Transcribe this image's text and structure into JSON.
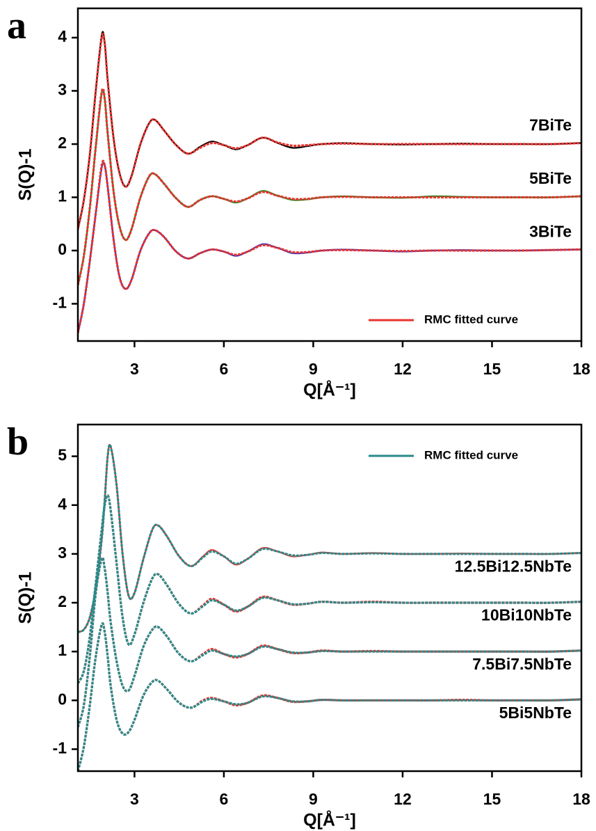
{
  "chart_data": [
    {
      "type": "line",
      "panel_label": "a",
      "x_label": "Q[Å⁻¹]",
      "y_label": "S(Q)-1",
      "xlim": [
        1.1,
        18
      ],
      "xticks": [
        3,
        6,
        9,
        12,
        15,
        18
      ],
      "ylim": [
        -1.7,
        4.55
      ],
      "yticks": [
        -1,
        0,
        1,
        2,
        3,
        4
      ],
      "legend": "lower right",
      "x": [
        1.1,
        1.3,
        1.5,
        1.7,
        1.9,
        2.0,
        2.1,
        2.3,
        2.5,
        2.7,
        2.9,
        3.2,
        3.5,
        3.7,
        4.0,
        4.4,
        4.8,
        5.2,
        5.6,
        6.0,
        6.4,
        6.8,
        7.3,
        7.8,
        8.3,
        8.8,
        9.3,
        10,
        11,
        12,
        13,
        14,
        15,
        16,
        17,
        18
      ],
      "series": [
        {
          "name": "7BiTe",
          "label": "inline",
          "color": "#000000",
          "values": [
            0.4,
            0.95,
            1.8,
            3.0,
            4.05,
            3.9,
            3.2,
            2.1,
            1.45,
            1.2,
            1.4,
            2.0,
            2.4,
            2.45,
            2.25,
            1.98,
            1.82,
            1.95,
            2.05,
            1.98,
            1.9,
            1.98,
            2.12,
            2.02,
            1.93,
            1.96,
            2.0,
            2.02,
            2.0,
            1.99,
            2.0,
            2.01,
            2.0,
            2.0,
            2.0,
            2.02
          ]
        },
        {
          "name": "5BiTe",
          "label": "inline",
          "color": "#1a8a1a",
          "values": [
            -0.65,
            -0.1,
            0.8,
            1.95,
            2.95,
            2.85,
            2.2,
            1.1,
            0.45,
            0.2,
            0.4,
            1.0,
            1.4,
            1.43,
            1.25,
            0.98,
            0.82,
            0.95,
            1.02,
            0.97,
            0.9,
            0.98,
            1.12,
            1.03,
            0.95,
            0.96,
            1.0,
            1.02,
            1.0,
            0.99,
            1.02,
            1.01,
            1.0,
            1.0,
            1.0,
            1.02
          ]
        },
        {
          "name": "3BiTe",
          "label": "inline",
          "color": "#3030c0",
          "values": [
            -1.55,
            -1.0,
            -0.2,
            0.7,
            1.55,
            1.6,
            1.2,
            0.2,
            -0.5,
            -0.72,
            -0.55,
            0.0,
            0.33,
            0.38,
            0.25,
            -0.02,
            -0.15,
            -0.05,
            0.02,
            -0.02,
            -0.1,
            -0.02,
            0.12,
            0.05,
            -0.05,
            -0.04,
            0.0,
            0.02,
            0.0,
            -0.02,
            0.0,
            0.01,
            0.0,
            0.0,
            0.01,
            0.02
          ]
        },
        {
          "name": "RMC fitted curve",
          "label": "legend",
          "color": "#e8332f",
          "values": [
            0.4,
            0.95,
            1.8,
            3.0,
            4.0,
            3.9,
            3.2,
            2.1,
            1.45,
            1.2,
            1.4,
            2.0,
            2.4,
            2.45,
            2.25,
            1.98,
            1.82,
            1.93,
            2.02,
            1.98,
            1.92,
            1.98,
            2.12,
            2.03,
            1.97,
            1.98,
            2.0,
            2.01,
            2.0,
            2.0,
            2.0,
            2.0,
            2.0,
            2.0,
            2.0,
            2.02
          ]
        },
        {
          "color": "#e8332f",
          "values": [
            -0.65,
            -0.1,
            0.8,
            1.95,
            2.98,
            2.85,
            2.2,
            1.1,
            0.45,
            0.2,
            0.4,
            1.0,
            1.4,
            1.43,
            1.25,
            0.98,
            0.82,
            0.95,
            1.02,
            0.97,
            0.92,
            0.98,
            1.1,
            1.03,
            0.97,
            0.97,
            1.0,
            1.01,
            1.0,
            1.0,
            1.0,
            1.0,
            1.0,
            1.0,
            1.0,
            1.02
          ]
        },
        {
          "color": "#e8332f",
          "values": [
            -1.55,
            -1.0,
            -0.2,
            0.7,
            1.6,
            1.6,
            1.2,
            0.2,
            -0.5,
            -0.72,
            -0.55,
            0.0,
            0.33,
            0.38,
            0.25,
            -0.02,
            -0.15,
            -0.05,
            0.02,
            -0.02,
            -0.08,
            -0.02,
            0.1,
            0.05,
            -0.03,
            -0.03,
            0.0,
            0.01,
            0.0,
            -0.01,
            0.0,
            0.0,
            0.0,
            0.0,
            0.01,
            0.02
          ]
        }
      ]
    },
    {
      "type": "line",
      "panel_label": "b",
      "x_label": "Q[Å⁻¹]",
      "y_label": "S(Q)-1",
      "xlim": [
        1.1,
        18
      ],
      "xticks": [
        3,
        6,
        9,
        12,
        15,
        18
      ],
      "ylim": [
        -1.45,
        5.65
      ],
      "yticks": [
        -1,
        0,
        1,
        2,
        3,
        4,
        5
      ],
      "legend": "upper right",
      "x": [
        1.1,
        1.3,
        1.5,
        1.7,
        1.9,
        2.0,
        2.1,
        2.2,
        2.4,
        2.6,
        2.8,
        3.0,
        3.3,
        3.6,
        3.8,
        4.1,
        4.5,
        4.9,
        5.3,
        5.6,
        6.0,
        6.4,
        6.8,
        7.3,
        7.8,
        8.3,
        8.8,
        9.3,
        10,
        11,
        12,
        13,
        14,
        15,
        16,
        17,
        18
      ],
      "series": [
        {
          "name": "12.5Bi12.5NbTe",
          "label": "inline",
          "color": "#e8332f",
          "values": [
            1.4,
            1.45,
            1.7,
            2.3,
            3.3,
            4.1,
            5.0,
            5.2,
            4.4,
            3.0,
            2.15,
            2.2,
            2.9,
            3.5,
            3.58,
            3.35,
            2.95,
            2.75,
            2.95,
            3.08,
            2.95,
            2.78,
            2.9,
            3.12,
            3.05,
            2.95,
            2.98,
            3.03,
            3.0,
            3.02,
            3.0,
            3.0,
            3.01,
            3.0,
            3.0,
            3.0,
            3.02
          ]
        },
        {
          "name": "10Bi10NbTe",
          "label": "inline",
          "color": "#e8332f",
          "values": [
            0.35,
            0.6,
            1.3,
            2.4,
            3.5,
            4.0,
            4.2,
            3.9,
            2.8,
            1.7,
            1.15,
            1.35,
            2.0,
            2.5,
            2.58,
            2.35,
            1.97,
            1.78,
            1.95,
            2.08,
            1.96,
            1.82,
            1.92,
            2.12,
            2.05,
            1.96,
            1.98,
            2.02,
            2.0,
            2.02,
            2.0,
            2.0,
            2.0,
            2.0,
            2.0,
            2.0,
            2.02
          ]
        },
        {
          "name": "7.5Bi7.5NbTe",
          "label": "inline",
          "color": "#e8332f",
          "values": [
            -0.55,
            -0.1,
            0.9,
            2.2,
            2.9,
            2.7,
            2.2,
            1.6,
            0.8,
            0.3,
            0.2,
            0.5,
            1.1,
            1.45,
            1.5,
            1.3,
            0.95,
            0.8,
            0.95,
            1.05,
            0.95,
            0.88,
            0.95,
            1.12,
            1.05,
            0.97,
            0.98,
            1.02,
            1.0,
            1.01,
            1.0,
            1.0,
            1.0,
            1.0,
            1.0,
            1.0,
            1.02
          ]
        },
        {
          "name": "5Bi5NbTe",
          "label": "inline",
          "color": "#e8332f",
          "values": [
            -1.45,
            -0.95,
            -0.1,
            0.9,
            1.55,
            1.4,
            0.9,
            0.3,
            -0.4,
            -0.68,
            -0.65,
            -0.4,
            0.1,
            0.38,
            0.4,
            0.22,
            -0.05,
            -0.15,
            0.0,
            0.05,
            -0.02,
            -0.1,
            -0.05,
            0.1,
            0.05,
            -0.03,
            -0.02,
            0.01,
            0.0,
            0.0,
            0.0,
            0.0,
            0.01,
            0.0,
            0.0,
            0.0,
            0.02
          ]
        },
        {
          "name": "RMC fitted curve",
          "label": "legend",
          "color": "#2a8a8a",
          "values": [
            1.4,
            1.45,
            1.7,
            2.3,
            3.3,
            4.1,
            5.0,
            5.2,
            4.4,
            3.0,
            2.15,
            2.2,
            2.9,
            3.5,
            3.58,
            3.35,
            2.95,
            2.75,
            2.93,
            3.05,
            2.95,
            2.8,
            2.9,
            3.1,
            3.05,
            2.97,
            2.98,
            3.02,
            3.0,
            3.01,
            3.0,
            3.0,
            3.0,
            3.0,
            3.0,
            3.0,
            3.02
          ]
        },
        {
          "color": "#2a8a8a",
          "values": [
            0.35,
            0.6,
            1.3,
            2.4,
            3.5,
            4.0,
            4.2,
            3.9,
            2.8,
            1.7,
            1.15,
            1.35,
            2.0,
            2.5,
            2.58,
            2.35,
            1.97,
            1.78,
            1.93,
            2.05,
            1.96,
            1.84,
            1.92,
            2.1,
            2.05,
            1.97,
            1.98,
            2.02,
            2.0,
            2.01,
            2.0,
            2.0,
            2.0,
            2.0,
            2.0,
            2.0,
            2.02
          ]
        },
        {
          "color": "#2a8a8a",
          "values": [
            -0.55,
            -0.1,
            0.9,
            2.2,
            2.9,
            2.7,
            2.2,
            1.6,
            0.8,
            0.3,
            0.2,
            0.5,
            1.1,
            1.45,
            1.5,
            1.3,
            0.95,
            0.8,
            0.93,
            1.02,
            0.95,
            0.9,
            0.95,
            1.1,
            1.05,
            0.98,
            0.98,
            1.01,
            1.0,
            1.0,
            1.0,
            1.0,
            1.0,
            1.0,
            1.0,
            1.0,
            1.02
          ]
        },
        {
          "color": "#2a8a8a",
          "values": [
            -1.45,
            -0.95,
            -0.1,
            0.9,
            1.55,
            1.4,
            0.9,
            0.3,
            -0.4,
            -0.68,
            -0.65,
            -0.4,
            0.1,
            0.38,
            0.4,
            0.22,
            -0.05,
            -0.15,
            -0.02,
            0.03,
            -0.02,
            -0.08,
            -0.05,
            0.08,
            0.05,
            -0.02,
            -0.02,
            0.01,
            0.0,
            0.0,
            0.0,
            0.0,
            0.0,
            0.0,
            0.0,
            0.0,
            0.02
          ]
        }
      ]
    }
  ]
}
